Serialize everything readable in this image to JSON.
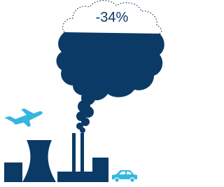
{
  "label": "-34%"
}
